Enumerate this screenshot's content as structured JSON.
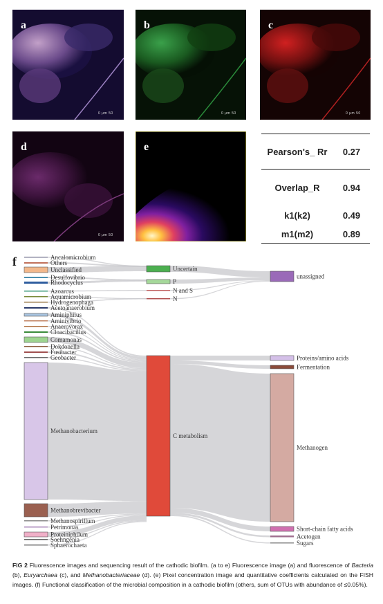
{
  "panels": {
    "a": "a",
    "b": "b",
    "c": "c",
    "d": "d",
    "e": "e",
    "scale": "0       μm       50"
  },
  "stats": [
    {
      "key": "Pearson's_ Rr",
      "value": "0.27"
    },
    {
      "key": "Overlap_R",
      "value": "0.94"
    },
    {
      "key": "k1(k2)",
      "value": "0.49"
    },
    {
      "key": "m1(m2)",
      "value": "0.89"
    }
  ],
  "sankey": {
    "panel_label": "f",
    "left_nodes": [
      {
        "label": "Ancalomicrobium",
        "color": "#8a8aa0"
      },
      {
        "label": "Others",
        "color": "#c0705a"
      },
      {
        "label": "Unclassified",
        "color": "#f2b88c"
      },
      {
        "label": "Desulfovibrio",
        "color": "#4a8fb0"
      },
      {
        "label": "Rhodocyclus",
        "color": "#2f5d9e"
      },
      {
        "label": "Azoarcus",
        "color": "#3c9a7a"
      },
      {
        "label": "Aquamicrobium",
        "color": "#7a8a3a"
      },
      {
        "label": "Hydrogenophaga",
        "color": "#9a7a4a"
      },
      {
        "label": "Acetoanaerobium",
        "color": "#2a3a6a"
      },
      {
        "label": "Aminiphilus",
        "color": "#a8c4e0"
      },
      {
        "label": "Aminivibrio",
        "color": "#c08060"
      },
      {
        "label": "Anaerovorax",
        "color": "#b07040"
      },
      {
        "label": "Cloacibacillus",
        "color": "#3a8a3a"
      },
      {
        "label": "Comamonas",
        "color": "#9ed490"
      },
      {
        "label": "Dokdonella",
        "color": "#8a5a3a"
      },
      {
        "label": "Fusibacter",
        "color": "#a05050"
      },
      {
        "label": "Geobacter",
        "color": "#6a6a6a"
      },
      {
        "label": "Methanobacterium",
        "color": "#d8c6e8"
      },
      {
        "label": "Methanobrevibacter",
        "color": "#9a6050"
      },
      {
        "label": "Methanospirillum",
        "color": "#888888"
      },
      {
        "label": "Petrimonas",
        "color": "#aa88bb"
      },
      {
        "label": "Proteiniphilum",
        "color": "#f0b0c8"
      },
      {
        "label": "Soehngenia",
        "color": "#666666"
      },
      {
        "label": "Sphaerochaeta",
        "color": "#777777"
      }
    ],
    "middle_nodes": [
      {
        "label": "Uncertain",
        "color": "#4caf50"
      },
      {
        "label": "P",
        "color": "#a5d89a"
      },
      {
        "label": "N and S",
        "color": "#c06060"
      },
      {
        "label": "N",
        "color": "#b05050"
      },
      {
        "label": "C metabolism",
        "color": "#e04a3a"
      }
    ],
    "right_nodes": [
      {
        "label": "unassigned",
        "color": "#9a6ab8"
      },
      {
        "label": "Proteins/amino acids",
        "color": "#d4c0e8"
      },
      {
        "label": "Fermentation",
        "color": "#8a4a3a"
      },
      {
        "label": "Methanogen",
        "color": "#d4aaa2"
      },
      {
        "label": "Short-chain fatty acids",
        "color": "#d070b0"
      },
      {
        "label": "Acetogen",
        "color": "#a07090"
      },
      {
        "label": "Sugars",
        "color": "#888888"
      }
    ]
  },
  "caption": {
    "fig": "FIG 2",
    "p1": " Fluorescence images and sequencing result of the cathodic biofilm. (a to e) Fluorescence image (a) and fluorescence of ",
    "bacteria": "Bacteria",
    "p2": " (b), ",
    "eury": "Euryarchaea",
    "p3": " (c), and ",
    "methano": "Methanobacteriaceae",
    "p4": " (d). (e) Pixel concentration image and quantitative coefficients calculated on the FISH images. (f) Functional classification of the microbial composition in a cathodic biofilm (others, sum of OTUs with abundance of ≤0.05%)."
  }
}
